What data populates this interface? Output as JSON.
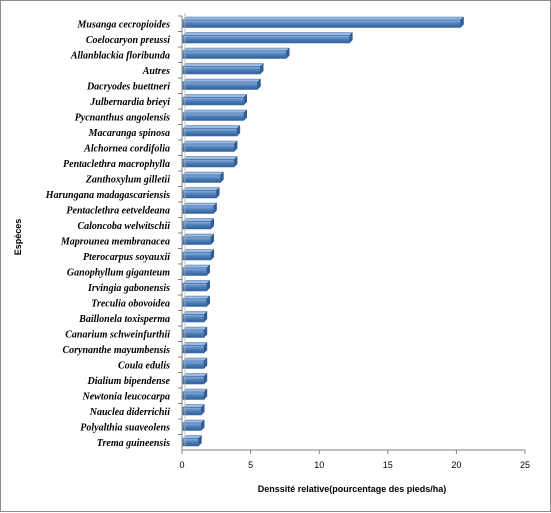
{
  "chart_data": {
    "type": "bar",
    "orientation": "horizontal",
    "title": "",
    "xlabel": "Denssité  relative(pourcentage des pieds/ha)",
    "ylabel": "Espèces",
    "xlim": [
      0,
      25
    ],
    "xticks": [
      "0",
      "5",
      "10",
      "15",
      "20",
      "25"
    ],
    "grid": false,
    "legend": "none",
    "bar_color": "#4f81bd",
    "categories": [
      "Musanga cecropioides",
      "Coelocaryon preussi",
      "Allanblackia floribunda",
      "Autres",
      "Dacryodes buettneri",
      "Julbernardia brieyi",
      "Pycnanthus angolensis",
      "Macaranga spinosa",
      "Alchornea cordifolia",
      "Pentaclethra macrophylla",
      "Zanthoxylum gilletii",
      "Harungana madagascariensis",
      "Pentaclethra eetveldeana",
      "Caloncoba welwitschii",
      "Maprounea membranacea",
      "Pterocarpus soyauxii",
      "Ganophyllum giganteum",
      "Irvingia gabonensis",
      "Treculia obovoidea",
      "Baillonela toxisperma",
      "Canarium schweinfurthii",
      "Corynanthe mayumbensis",
      "Coula edulis",
      "Dialium bipendense",
      "Newtonia leucocarpa",
      "Nauclea diderrichii",
      "Polyalthia suaveolens",
      "Trema guineensis"
    ],
    "values": [
      20.3,
      12.2,
      7.6,
      5.7,
      5.5,
      4.5,
      4.5,
      4.0,
      3.8,
      3.8,
      2.8,
      2.5,
      2.3,
      2.1,
      2.1,
      2.1,
      1.8,
      1.8,
      1.8,
      1.6,
      1.6,
      1.6,
      1.6,
      1.6,
      1.6,
      1.4,
      1.4,
      1.2
    ]
  }
}
